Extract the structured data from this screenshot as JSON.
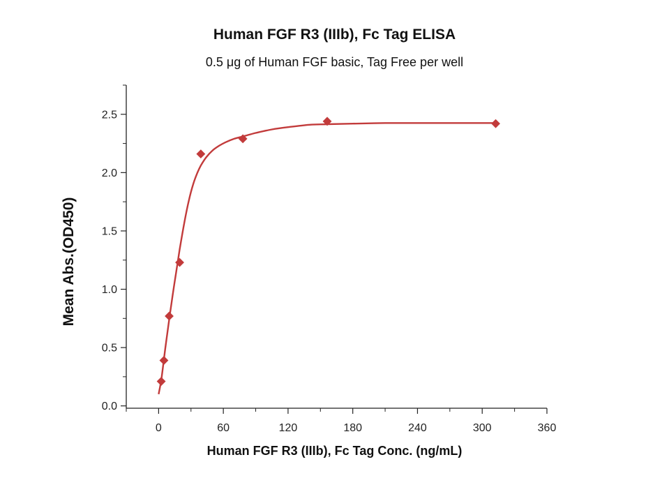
{
  "chart_data": {
    "type": "scatter",
    "title": "Human FGF R3 (IIIb), Fc Tag ELISA",
    "subtitle": "0.5 μg of Human FGF basic, Tag Free per well",
    "xlabel": "Human FGF R3 (IIIb), Fc Tag Conc. (ng/mL)",
    "ylabel": "Mean Abs.(OD450)",
    "xlim": [
      -30,
      360
    ],
    "ylim": [
      -0.02,
      2.75
    ],
    "xticks": [
      "0",
      "60",
      "120",
      "180",
      "240",
      "300",
      "360"
    ],
    "yticks": [
      "0.0",
      "0.5",
      "1.0",
      "1.5",
      "2.0",
      "2.5"
    ],
    "grid": false,
    "colors": {
      "series": "#c23b3b"
    },
    "series": [
      {
        "x": [
          2.4,
          4.9,
          9.8,
          19.5,
          39.1,
          78.1,
          156.3,
          312.5
        ],
        "y": [
          0.21,
          0.39,
          0.77,
          1.23,
          2.16,
          2.29,
          2.44,
          2.42
        ]
      }
    ],
    "fit_curve": {
      "x": [
        0,
        2.4,
        4.9,
        7,
        9.8,
        13,
        16,
        19.5,
        24,
        28,
        32,
        36,
        39.1,
        44,
        50,
        56,
        62,
        70,
        78.1,
        90,
        105,
        120,
        140,
        156.3,
        180,
        210,
        240,
        270,
        300,
        312.5
      ],
      "y": [
        0.1,
        0.22,
        0.4,
        0.55,
        0.74,
        0.95,
        1.13,
        1.34,
        1.58,
        1.76,
        1.9,
        2.0,
        2.06,
        2.13,
        2.19,
        2.23,
        2.26,
        2.29,
        2.31,
        2.34,
        2.37,
        2.39,
        2.41,
        2.415,
        2.42,
        2.425,
        2.425,
        2.425,
        2.425,
        2.425
      ]
    }
  }
}
